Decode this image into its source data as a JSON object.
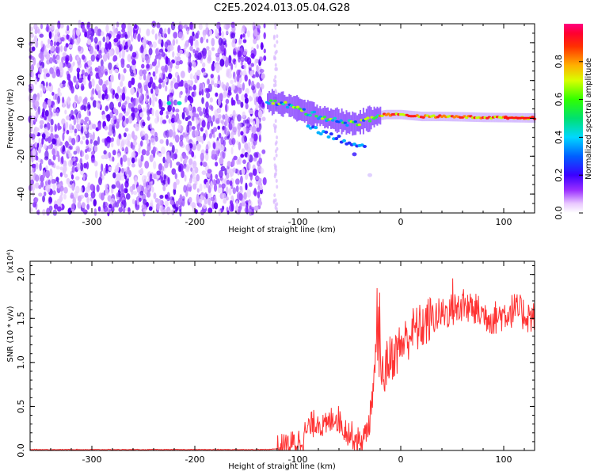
{
  "title": "C2E5.2024.013.05.04.G28",
  "chart_data": [
    {
      "type": "heatmap",
      "xlabel": "Height of straight line (km)",
      "ylabel": "Frequency (Hz)",
      "xlim": [
        -360,
        130
      ],
      "ylim": [
        -50,
        50
      ],
      "x_ticks": [
        -300,
        -200,
        -100,
        0,
        100
      ],
      "x_tick_labels": [
        "-300",
        "-200",
        "-100",
        "0",
        "100"
      ],
      "y_ticks": [
        -40,
        -20,
        0,
        20,
        40
      ],
      "y_tick_labels": [
        "-40",
        "-20",
        "0",
        "20",
        "40"
      ],
      "colorbar": {
        "label": "Normalized spectral amplitude",
        "range": [
          0,
          1
        ],
        "ticks": [
          0.0,
          0.2,
          0.4,
          0.6,
          0.8
        ],
        "tick_labels": [
          "0.0",
          "0.2",
          "0.4",
          "0.6",
          "0.8"
        ],
        "colormap": "rainbow (white-violet-blue-cyan-green-yellow-orange-red-magenta)"
      },
      "features": {
        "noise_region_x": [
          -360,
          -120
        ],
        "signal_track": [
          [
            -230,
            8
          ],
          [
            -130,
            9
          ],
          [
            -110,
            7
          ],
          [
            -95,
            4
          ],
          [
            -85,
            2
          ],
          [
            -70,
            0
          ],
          [
            -55,
            -2
          ],
          [
            -45,
            -3
          ],
          [
            -35,
            -1
          ],
          [
            -25,
            1
          ],
          [
            -15,
            2
          ],
          [
            0,
            2
          ],
          [
            20,
            1
          ],
          [
            40,
            1
          ],
          [
            60,
            0.8
          ],
          [
            80,
            0.5
          ],
          [
            100,
            0.4
          ],
          [
            130,
            0.2
          ]
        ]
      },
      "grid": false
    },
    {
      "type": "line",
      "xlabel": "Height of straight line (km)",
      "ylabel": "SNR (10 * v/v)",
      "y_multiplier": "(x10⁴)",
      "xlim": [
        -360,
        130
      ],
      "ylim": [
        0,
        2.15
      ],
      "x_ticks": [
        -300,
        -200,
        -100,
        0,
        100
      ],
      "x_tick_labels": [
        "-300",
        "-200",
        "-100",
        "0",
        "100"
      ],
      "y_ticks": [
        0,
        0.5,
        1.0,
        1.5,
        2.0
      ],
      "y_tick_labels": [
        "0.0",
        "0.5",
        "1.0",
        "1.5",
        "2.0"
      ],
      "color": "#ff3333",
      "series": [
        {
          "x": [
            -360,
            -300,
            -200,
            -130,
            -120,
            -110,
            -100,
            -95,
            -90,
            -85,
            -80,
            -75,
            -70,
            -65,
            -60,
            -55,
            -50,
            -45,
            -40,
            -35,
            -30,
            -27,
            -25,
            -22,
            -20,
            -17,
            -15,
            -10,
            -5,
            0,
            5,
            10,
            20,
            30,
            40,
            50,
            60,
            70,
            80,
            90,
            100,
            110,
            120,
            130
          ],
          "y": [
            0.01,
            0.01,
            0.01,
            0.01,
            0.02,
            0.05,
            0.1,
            0.15,
            0.25,
            0.3,
            0.35,
            0.25,
            0.3,
            0.4,
            0.35,
            0.25,
            0.2,
            0.15,
            0.1,
            0.15,
            0.35,
            0.7,
            0.9,
            1.2,
            1.0,
            0.8,
            0.95,
            1.05,
            1.1,
            1.2,
            1.25,
            1.35,
            1.4,
            1.5,
            1.55,
            1.6,
            1.65,
            1.6,
            1.55,
            1.5,
            1.55,
            1.6,
            1.55,
            1.5
          ]
        }
      ],
      "grid": false
    }
  ]
}
